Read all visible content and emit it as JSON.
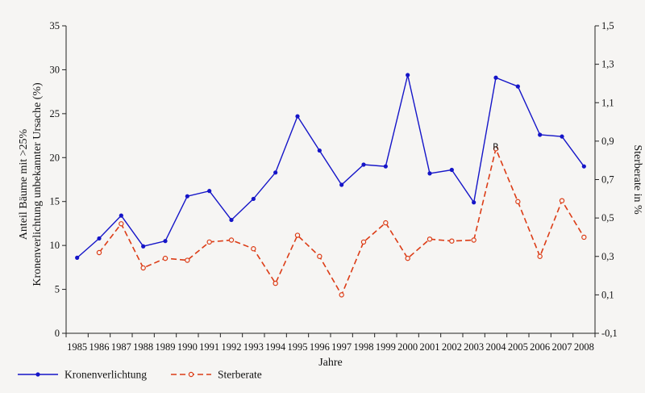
{
  "chart_data": {
    "type": "line",
    "xlabel": "Jahre",
    "ylabel_left": "Anteil Bäume mit >25% Kronenverlichtung unbekannter Ursache (%)",
    "ylabel_right": "Sterberate in %",
    "ylim_left": [
      0,
      35
    ],
    "ylim_right": [
      -0.1,
      1.5
    ],
    "yticks_left": [
      0,
      5,
      10,
      15,
      20,
      25,
      30,
      35
    ],
    "yticks_right": [
      -0.1,
      0.1,
      0.3,
      0.5,
      0.7,
      0.9,
      1.1,
      1.3,
      1.5
    ],
    "yticklabels_right": [
      "-0,1",
      "0,1",
      "0,3",
      "0,5",
      "0,7",
      "0,9",
      "1,1",
      "1,3",
      "1,5"
    ],
    "categories": [
      "1985",
      "1986",
      "1987",
      "1988",
      "1989",
      "1990",
      "1991",
      "1992",
      "1993",
      "1994",
      "1995",
      "1996",
      "1997",
      "1998",
      "1999",
      "2000",
      "2001",
      "2002",
      "2003",
      "2004",
      "2005",
      "2006",
      "2007",
      "2008"
    ],
    "annotation": "R",
    "grid": false,
    "legend_position": "bottom",
    "series": [
      {
        "name": "Kronenverlichtung",
        "axis": "left",
        "color": "#1515c8",
        "style": "solid",
        "marker": "filled-circle",
        "values": [
          8.6,
          10.8,
          13.4,
          9.9,
          10.5,
          15.6,
          16.2,
          12.9,
          15.3,
          18.3,
          24.7,
          20.8,
          16.9,
          19.2,
          19.0,
          29.4,
          18.2,
          18.6,
          14.9,
          29.1,
          28.1,
          22.6,
          22.4,
          19.0
        ]
      },
      {
        "name": "Sterberate",
        "axis": "right",
        "color": "#dc3c16",
        "style": "dashed",
        "marker": "open-circle",
        "values": [
          null,
          0.32,
          0.47,
          0.24,
          0.29,
          0.28,
          0.375,
          0.385,
          0.34,
          0.16,
          0.41,
          0.3,
          0.1,
          0.375,
          0.475,
          0.29,
          0.39,
          0.38,
          0.385,
          0.86,
          0.585,
          0.3,
          0.59,
          0.4
        ]
      }
    ]
  }
}
